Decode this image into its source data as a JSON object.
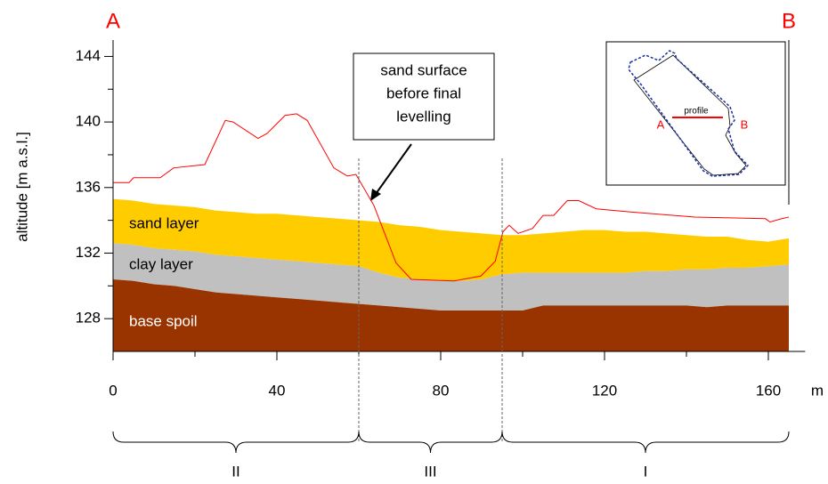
{
  "chart_data": {
    "type": "area",
    "corner_labels": [
      "A",
      "B"
    ],
    "y_label": "altitude [m a.s.l.]",
    "x_unit": "m",
    "xlim": [
      0,
      169
    ],
    "ylim": [
      126,
      145
    ],
    "xticks": [
      0,
      40,
      80,
      120,
      160
    ],
    "yticks": [
      128,
      132,
      136,
      140,
      144
    ],
    "xminor": [
      20,
      60,
      100,
      140
    ],
    "yminor": [
      130,
      134,
      138,
      142
    ],
    "x": [
      0,
      5,
      10,
      15,
      20,
      25,
      30,
      35,
      40,
      45,
      50,
      55,
      60,
      65,
      70,
      75,
      80,
      85,
      90,
      95,
      100,
      105,
      110,
      115,
      120,
      125,
      130,
      135,
      140,
      145,
      150,
      155,
      160,
      165
    ],
    "series": [
      {
        "name": "sand layer",
        "color": "#ffcc00",
        "text_color": "#000000",
        "values": [
          135.3,
          135.2,
          135.0,
          134.9,
          134.8,
          134.6,
          134.5,
          134.4,
          134.4,
          134.3,
          134.2,
          134.1,
          134.0,
          133.9,
          133.7,
          133.6,
          133.4,
          133.3,
          133.2,
          133.1,
          133.1,
          133.2,
          133.3,
          133.4,
          133.4,
          133.3,
          133.3,
          133.2,
          133.1,
          133.0,
          133.0,
          132.8,
          132.7,
          132.9
        ]
      },
      {
        "name": "clay layer",
        "color": "#c0c0c0",
        "text_color": "#000000",
        "values": [
          132.6,
          132.5,
          132.3,
          132.2,
          132.1,
          131.9,
          131.8,
          131.7,
          131.6,
          131.5,
          131.4,
          131.3,
          131.2,
          130.8,
          130.5,
          130.4,
          130.3,
          130.3,
          130.4,
          130.7,
          130.8,
          130.8,
          130.8,
          130.8,
          130.8,
          130.8,
          130.9,
          130.9,
          131.0,
          131.0,
          131.1,
          131.1,
          131.2,
          131.3
        ]
      },
      {
        "name": "base spoil",
        "color": "#993300",
        "text_color": "#ffffff",
        "values": [
          130.4,
          130.3,
          130.1,
          130.0,
          129.8,
          129.6,
          129.5,
          129.4,
          129.3,
          129.2,
          129.1,
          129.0,
          128.9,
          128.8,
          128.7,
          128.6,
          128.5,
          128.5,
          128.5,
          128.5,
          128.5,
          128.8,
          128.8,
          128.8,
          128.8,
          128.8,
          128.8,
          128.8,
          128.8,
          128.7,
          128.8,
          128.8,
          128.8,
          128.8
        ]
      }
    ],
    "surface": {
      "color": "#ff0000",
      "x": [
        0,
        3.9,
        5,
        11.5,
        14.8,
        22.4,
        27.4,
        29.3,
        35.4,
        37.6,
        42,
        44.8,
        47.4,
        53.9,
        57.2,
        59.3,
        63.7,
        69.1,
        72.8,
        83.3,
        89.8,
        93.3,
        95.2,
        96.7,
        98.9,
        102.4,
        105,
        107.6,
        110.9,
        113.7,
        118,
        126.7,
        142,
        159.3,
        160.4,
        163.3,
        165
      ],
      "values": [
        136.3,
        136.3,
        136.6,
        136.6,
        137.2,
        137.4,
        140.1,
        140,
        139,
        139.3,
        140.4,
        140.5,
        140.1,
        137.2,
        136.7,
        136.8,
        134.9,
        131.4,
        130.4,
        130.3,
        130.6,
        131.5,
        133.3,
        133.7,
        133.2,
        133.5,
        134.3,
        134.3,
        135.2,
        135.2,
        134.7,
        134.5,
        134.2,
        134.1,
        133.9,
        134.1,
        134.2
      ]
    },
    "annotation": [
      "sand surface",
      "before final",
      "levelling"
    ],
    "zones": [
      {
        "label": "II",
        "from": 0,
        "to": 60
      },
      {
        "label": "III",
        "from": 60,
        "to": 95
      },
      {
        "label": "I",
        "from": 95,
        "to": 165
      }
    ],
    "inset": {
      "labels": [
        "A",
        "profile",
        "B"
      ]
    }
  }
}
